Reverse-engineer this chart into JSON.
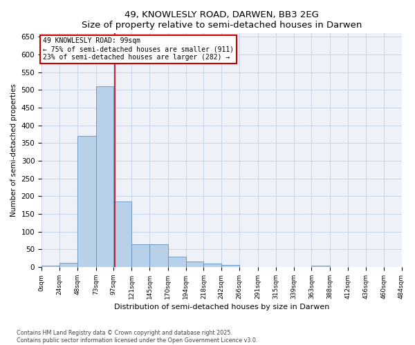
{
  "title": "49, KNOWLESLY ROAD, DARWEN, BB3 2EG",
  "subtitle": "Size of property relative to semi-detached houses in Darwen",
  "xlabel": "Distribution of semi-detached houses by size in Darwen",
  "ylabel": "Number of semi-detached properties",
  "property_size": 99,
  "pct_smaller": 75,
  "count_smaller": 911,
  "pct_larger": 23,
  "count_larger": 282,
  "bin_edges": [
    0,
    24,
    48,
    73,
    97,
    121,
    145,
    170,
    194,
    218,
    242,
    266,
    291,
    315,
    339,
    363,
    388,
    412,
    436,
    460,
    484
  ],
  "bin_labels": [
    "0sqm",
    "24sqm",
    "48sqm",
    "73sqm",
    "97sqm",
    "121sqm",
    "145sqm",
    "170sqm",
    "194sqm",
    "218sqm",
    "242sqm",
    "266sqm",
    "291sqm",
    "315sqm",
    "339sqm",
    "363sqm",
    "388sqm",
    "412sqm",
    "436sqm",
    "460sqm",
    "484sqm"
  ],
  "counts": [
    3,
    12,
    370,
    510,
    185,
    65,
    65,
    30,
    15,
    10,
    6,
    0,
    0,
    0,
    0,
    3,
    0,
    0,
    0,
    0
  ],
  "bar_color": "#b8d0e8",
  "bar_edge_color": "#6090c0",
  "vline_color": "#cc0000",
  "annotation_box_color": "#cc0000",
  "grid_color": "#c8d4e4",
  "background_color": "#eef2f8",
  "ylim": [
    0,
    660
  ],
  "yticks": [
    0,
    50,
    100,
    150,
    200,
    250,
    300,
    350,
    400,
    450,
    500,
    550,
    600,
    650
  ],
  "footer_line1": "Contains HM Land Registry data © Crown copyright and database right 2025.",
  "footer_line2": "Contains public sector information licensed under the Open Government Licence v3.0."
}
